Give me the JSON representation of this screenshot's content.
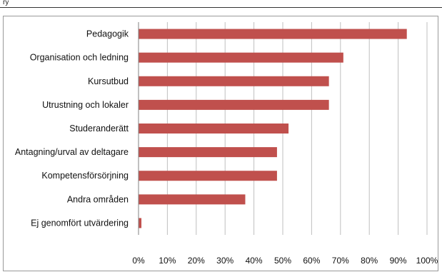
{
  "page": {
    "top_fragment": "ry"
  },
  "colors": {
    "bar": "#c0504d",
    "grid": "#bfbfbf",
    "axis": "#808080"
  },
  "chart_data": {
    "type": "bar",
    "orientation": "horizontal",
    "title": "",
    "xlabel": "",
    "ylabel": "",
    "categories": [
      "Pedagogik",
      "Organisation och ledning",
      "Kursutbud",
      "Utrustning och lokaler",
      "Studeranderätt",
      "Antagning/urval av deltagare",
      "Kompetensförsörjning",
      "Andra områden",
      "Ej genomfört utvärdering"
    ],
    "values": [
      93,
      71,
      66,
      66,
      52,
      48,
      48,
      37,
      1
    ],
    "xlim": [
      0,
      100
    ],
    "xticks": [
      "0%",
      "10%",
      "20%",
      "30%",
      "40%",
      "50%",
      "60%",
      "70%",
      "80%",
      "90%",
      "100%"
    ],
    "grid": true,
    "legend": "none"
  }
}
